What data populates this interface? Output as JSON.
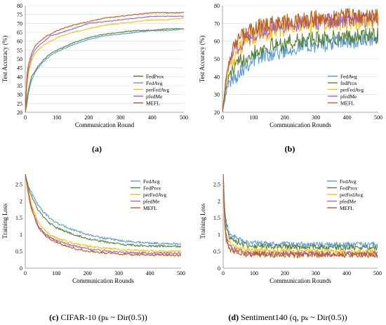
{
  "figure": {
    "panels": [
      {
        "caption_letter": "(a)",
        "caption_rest": ""
      },
      {
        "caption_letter": "(b)",
        "caption_rest": ""
      },
      {
        "caption_letter": "(c)",
        "caption_rest": " CIFAR-10 (pₖ ~ Dir(0.5))"
      },
      {
        "caption_letter": "(d)",
        "caption_rest": " Sentiment140 (q, pₖ ~ Dir(0.5))"
      }
    ]
  },
  "chart_data": [
    {
      "type": "line",
      "xlabel": "Communication Round",
      "ylabel": "Test Accuracy (%)",
      "xlim": [
        0,
        500
      ],
      "ylim": [
        20,
        80
      ],
      "xticks": [
        0,
        100,
        200,
        300,
        400,
        500
      ],
      "yticks": [
        20,
        25,
        30,
        35,
        40,
        45,
        50,
        55,
        60,
        65,
        70,
        75,
        80
      ],
      "grid": "horizontal",
      "legend": "bottom-right",
      "legend_order": [
        "FedProx",
        "FedAvg",
        "perFedAvg",
        "pfedMe",
        "MEFL"
      ],
      "noise": 0.25,
      "series": [
        {
          "name": "FedAvg",
          "color": "#5B9BD5",
          "x": [
            0,
            5,
            10,
            20,
            30,
            40,
            60,
            80,
            100,
            150,
            200,
            250,
            300,
            350,
            400,
            450,
            500
          ],
          "values": [
            20,
            24,
            31,
            38,
            42,
            45,
            49,
            52,
            54,
            58,
            61,
            63,
            64,
            65,
            66,
            66,
            67
          ]
        },
        {
          "name": "FedProx",
          "color": "#548235",
          "x": [
            0,
            5,
            10,
            20,
            30,
            40,
            60,
            80,
            100,
            150,
            200,
            250,
            300,
            350,
            400,
            450,
            500
          ],
          "values": [
            20,
            27,
            33,
            40,
            43,
            46,
            50,
            53,
            55,
            59,
            62,
            64,
            65,
            66,
            66,
            67,
            67
          ]
        },
        {
          "name": "perFedAvg",
          "color": "#FFC000",
          "x": [
            0,
            5,
            10,
            20,
            30,
            40,
            60,
            80,
            100,
            150,
            200,
            250,
            300,
            350,
            400,
            450,
            500
          ],
          "values": [
            20,
            35,
            42,
            49,
            53,
            55,
            58,
            60,
            62,
            65,
            67,
            69,
            70,
            71,
            72,
            72,
            73
          ]
        },
        {
          "name": "pfedMe",
          "color": "#9966CC",
          "x": [
            0,
            5,
            10,
            20,
            30,
            40,
            60,
            80,
            100,
            150,
            200,
            250,
            300,
            350,
            400,
            450,
            500
          ],
          "values": [
            20,
            37,
            44,
            51,
            55,
            57,
            60,
            63,
            64,
            67,
            70,
            71,
            72,
            73,
            74,
            74,
            74
          ]
        },
        {
          "name": "MEFL",
          "color": "#C55A11",
          "x": [
            0,
            5,
            10,
            20,
            30,
            40,
            60,
            80,
            100,
            150,
            200,
            250,
            300,
            350,
            400,
            450,
            500
          ],
          "values": [
            20,
            40,
            47,
            53,
            57,
            59,
            62,
            64,
            66,
            69,
            71,
            73,
            74,
            75,
            76,
            76,
            76
          ]
        }
      ]
    },
    {
      "type": "line",
      "xlabel": "Communication Rounds",
      "ylabel": "Test Accuracy (%)",
      "xlim": [
        0,
        500
      ],
      "ylim": [
        20,
        80
      ],
      "xticks": [
        0,
        100,
        200,
        300,
        400,
        500
      ],
      "yticks": [
        20,
        30,
        40,
        50,
        60,
        70,
        80
      ],
      "grid": "horizontal",
      "legend": "bottom-right",
      "legend_order": [
        "FedAvg",
        "fedProx",
        "perFedAvg",
        "pfedMe",
        "MEFL"
      ],
      "noise": 4.5,
      "series": [
        {
          "name": "FedAvg",
          "color": "#5B9BD5",
          "x": [
            0,
            10,
            20,
            40,
            60,
            80,
            100,
            150,
            200,
            250,
            300,
            350,
            400,
            450,
            500
          ],
          "values": [
            20,
            30,
            36,
            40,
            44,
            47,
            50,
            53,
            55,
            57,
            58,
            59,
            60,
            60,
            61
          ]
        },
        {
          "name": "fedProx",
          "color": "#548235",
          "x": [
            0,
            10,
            20,
            40,
            60,
            80,
            100,
            150,
            200,
            250,
            300,
            350,
            400,
            450,
            500
          ],
          "values": [
            20,
            32,
            40,
            45,
            49,
            52,
            54,
            57,
            59,
            60,
            61,
            62,
            62,
            63,
            63
          ]
        },
        {
          "name": "perFedAvg",
          "color": "#FFC000",
          "x": [
            0,
            10,
            20,
            40,
            60,
            80,
            100,
            150,
            200,
            250,
            300,
            350,
            400,
            450,
            500
          ],
          "values": [
            20,
            35,
            45,
            52,
            57,
            60,
            62,
            65,
            67,
            68,
            69,
            70,
            70,
            71,
            71
          ]
        },
        {
          "name": "pfedMe",
          "color": "#9966CC",
          "x": [
            0,
            10,
            20,
            40,
            60,
            80,
            100,
            150,
            200,
            250,
            300,
            350,
            400,
            450,
            500
          ],
          "values": [
            20,
            36,
            47,
            55,
            59,
            62,
            64,
            67,
            69,
            70,
            71,
            71,
            72,
            72,
            72
          ]
        },
        {
          "name": "MEFL",
          "color": "#C55A11",
          "x": [
            0,
            10,
            20,
            40,
            60,
            80,
            100,
            150,
            200,
            250,
            300,
            350,
            400,
            450,
            500
          ],
          "values": [
            20,
            37,
            49,
            58,
            62,
            65,
            67,
            70,
            71,
            72,
            73,
            73,
            74,
            74,
            74
          ]
        }
      ]
    },
    {
      "type": "line",
      "xlabel": "Communication Rounds",
      "ylabel": "Training Loss",
      "xlim": [
        0,
        500
      ],
      "ylim": [
        0,
        2.8
      ],
      "xticks": [
        0,
        100,
        200,
        300,
        400,
        500
      ],
      "yticks": [
        0,
        0.5,
        1,
        1.5,
        2,
        2.5
      ],
      "grid": "none",
      "legend": "top-right",
      "legend_order": [
        "FedAvg",
        "FedProx",
        "perFedAvg",
        "pfedMe",
        "MEFL"
      ],
      "noise": 0.03,
      "series": [
        {
          "name": "FedAvg",
          "color": "#5B9BD5",
          "x": [
            0,
            10,
            20,
            40,
            60,
            80,
            100,
            150,
            200,
            250,
            300,
            350,
            400,
            450,
            500
          ],
          "values": [
            2.8,
            2.45,
            2.25,
            1.9,
            1.65,
            1.48,
            1.35,
            1.15,
            1.0,
            0.9,
            0.82,
            0.78,
            0.75,
            0.73,
            0.72
          ]
        },
        {
          "name": "FedProx",
          "color": "#548235",
          "x": [
            0,
            10,
            20,
            40,
            60,
            80,
            100,
            150,
            200,
            250,
            300,
            350,
            400,
            450,
            500
          ],
          "values": [
            2.8,
            2.4,
            2.15,
            1.75,
            1.5,
            1.32,
            1.2,
            1.02,
            0.88,
            0.79,
            0.72,
            0.68,
            0.66,
            0.65,
            0.64
          ]
        },
        {
          "name": "perFedAvg",
          "color": "#FFC000",
          "x": [
            0,
            10,
            20,
            40,
            60,
            80,
            100,
            150,
            200,
            250,
            300,
            350,
            400,
            450,
            500
          ],
          "values": [
            2.8,
            2.3,
            1.9,
            1.4,
            1.15,
            1.0,
            0.9,
            0.75,
            0.66,
            0.6,
            0.56,
            0.53,
            0.51,
            0.5,
            0.5
          ]
        },
        {
          "name": "pfedMe",
          "color": "#9966CC",
          "x": [
            0,
            10,
            20,
            40,
            60,
            80,
            100,
            150,
            200,
            250,
            300,
            350,
            400,
            450,
            500
          ],
          "values": [
            2.8,
            2.25,
            1.8,
            1.3,
            1.05,
            0.92,
            0.82,
            0.67,
            0.58,
            0.52,
            0.48,
            0.46,
            0.45,
            0.45,
            0.45
          ]
        },
        {
          "name": "MEFL",
          "color": "#C55A11",
          "x": [
            0,
            10,
            20,
            40,
            60,
            80,
            100,
            150,
            200,
            250,
            300,
            350,
            400,
            450,
            500
          ],
          "values": [
            2.8,
            2.2,
            1.75,
            1.25,
            1.0,
            0.86,
            0.76,
            0.6,
            0.51,
            0.46,
            0.42,
            0.4,
            0.39,
            0.39,
            0.38
          ]
        }
      ]
    },
    {
      "type": "line",
      "xlabel": "Communication Rounds",
      "ylabel": "Training Loss",
      "xlim": [
        0,
        500
      ],
      "ylim": [
        0,
        2.8
      ],
      "xticks": [
        0,
        100,
        200,
        300,
        400,
        500
      ],
      "yticks": [
        0,
        0.5,
        1,
        1.5,
        2,
        2.5
      ],
      "grid": "none",
      "legend": "top-right",
      "legend_order": [
        "FedAvg",
        "FedProx",
        "perFedAvg",
        "pfedMe",
        "MEFL"
      ],
      "noise": 0.08,
      "series": [
        {
          "name": "FedAvg",
          "color": "#5B9BD5",
          "x": [
            0,
            5,
            10,
            20,
            40,
            60,
            80,
            100,
            150,
            200,
            300,
            400,
            500
          ],
          "values": [
            2.8,
            1.7,
            1.35,
            1.05,
            0.9,
            0.82,
            0.78,
            0.75,
            0.72,
            0.71,
            0.7,
            0.7,
            0.7
          ]
        },
        {
          "name": "FedProx",
          "color": "#548235",
          "x": [
            0,
            5,
            10,
            20,
            40,
            60,
            80,
            100,
            150,
            200,
            300,
            400,
            500
          ],
          "values": [
            2.8,
            1.6,
            1.2,
            0.95,
            0.8,
            0.72,
            0.68,
            0.66,
            0.64,
            0.63,
            0.63,
            0.62,
            0.62
          ]
        },
        {
          "name": "perFedAvg",
          "color": "#FFC000",
          "x": [
            0,
            5,
            10,
            20,
            40,
            60,
            80,
            100,
            150,
            200,
            300,
            400,
            500
          ],
          "values": [
            2.8,
            1.4,
            1.0,
            0.75,
            0.62,
            0.56,
            0.53,
            0.52,
            0.51,
            0.5,
            0.5,
            0.5,
            0.5
          ]
        },
        {
          "name": "pfedMe",
          "color": "#9966CC",
          "x": [
            0,
            5,
            10,
            20,
            40,
            60,
            80,
            100,
            150,
            200,
            300,
            400,
            500
          ],
          "values": [
            2.8,
            1.3,
            0.9,
            0.65,
            0.52,
            0.47,
            0.45,
            0.44,
            0.44,
            0.43,
            0.43,
            0.43,
            0.43
          ]
        },
        {
          "name": "MEFL",
          "color": "#C55A11",
          "x": [
            0,
            5,
            10,
            20,
            40,
            60,
            80,
            100,
            150,
            200,
            300,
            400,
            500
          ],
          "values": [
            2.8,
            1.2,
            0.8,
            0.58,
            0.47,
            0.43,
            0.41,
            0.4,
            0.4,
            0.39,
            0.39,
            0.39,
            0.39
          ]
        }
      ]
    }
  ]
}
